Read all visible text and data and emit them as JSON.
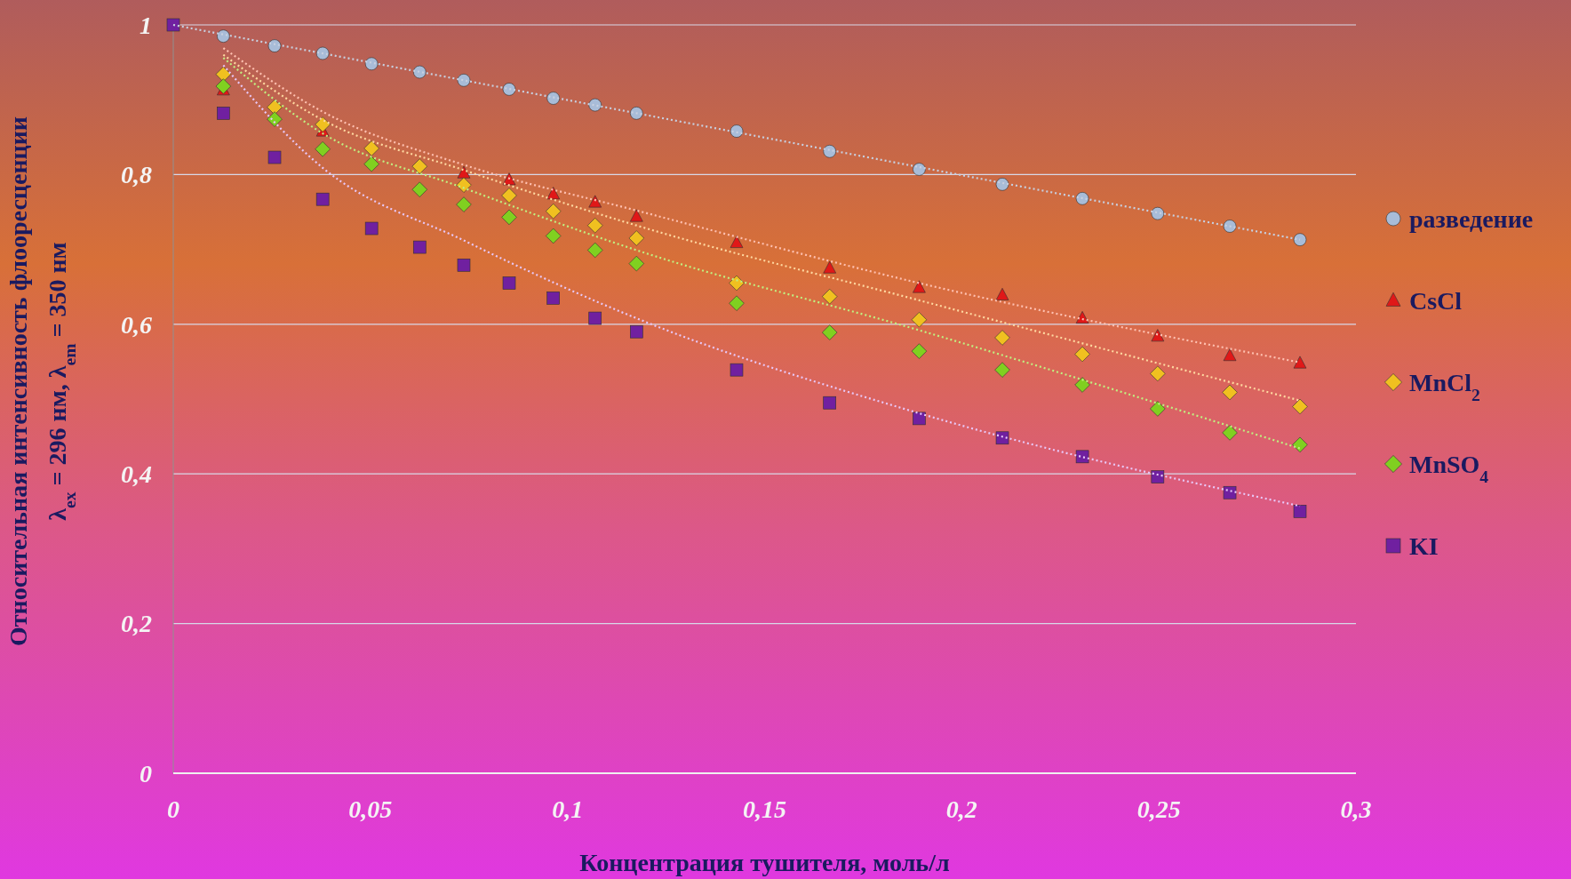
{
  "chart_data": {
    "type": "scatter",
    "xlabel": "Концентрация тушителя, моль/л",
    "ylabel": "Относительная интенсивность флооресценции\nλ$_{ex}$ = 296 нм, λ$_{em}$ = 350 нм",
    "xlim": [
      0,
      0.3
    ],
    "ylim": [
      0,
      1
    ],
    "xticks": [
      0,
      {
        "value": 0.05,
        "label": "0,05"
      },
      {
        "value": 0.1,
        "label": "0,1"
      },
      {
        "value": 0.15,
        "label": "0,15"
      },
      {
        "value": 0.2,
        "label": "0,2"
      },
      {
        "value": 0.25,
        "label": "0,25"
      },
      {
        "value": 0.3,
        "label": "0,3"
      }
    ],
    "yticks": [
      0,
      {
        "value": 0.2,
        "label": "0,2"
      },
      {
        "value": 0.4,
        "label": "0,4"
      },
      {
        "value": 0.6,
        "label": "0,6"
      },
      {
        "value": 0.8,
        "label": "0,8"
      },
      1
    ],
    "grid": "y",
    "legend": "right",
    "x": [
      0,
      0.0127,
      0.0257,
      0.0379,
      0.0503,
      0.0625,
      0.0737,
      0.0852,
      0.0964,
      0.107,
      0.1175,
      0.1429,
      0.1665,
      0.1892,
      0.2103,
      0.2306,
      0.2497,
      0.268,
      0.2858
    ],
    "series": [
      {
        "type": "line",
        "color": "#c8d0e0",
        "line_style": "dotted",
        "marker": "none",
        "x": [
          0,
          0.2858
        ],
        "values": [
          1,
          0.713
        ]
      },
      {
        "type": "line",
        "color": "#ffc0b0",
        "line_style": "dotted",
        "marker": "none",
        "x": [
          0.0127,
          0.0379,
          0.0737,
          0.1175,
          0.1892,
          0.2858
        ],
        "values": [
          0.969,
          0.884,
          0.813,
          0.752,
          0.655,
          0.549
        ]
      },
      {
        "type": "line",
        "color": "#ffd8a0",
        "line_style": "dotted",
        "marker": "none",
        "x": [
          0.0127,
          0.0379,
          0.0737,
          0.1175,
          0.1892,
          0.2858
        ],
        "values": [
          0.96,
          0.873,
          0.806,
          0.732,
          0.632,
          0.498
        ]
      },
      {
        "type": "line",
        "color": "#c0f080",
        "line_style": "dotted",
        "marker": "none",
        "x": [
          0.0127,
          0.0379,
          0.0737,
          0.1175,
          0.1892,
          0.2858
        ],
        "values": [
          0.956,
          0.855,
          0.782,
          0.699,
          0.592,
          0.434
        ]
      },
      {
        "type": "line",
        "color": "#e8c8f8",
        "line_style": "dotted",
        "marker": "none",
        "x": [
          0.0127,
          0.0379,
          0.0737,
          0.1175,
          0.1892,
          0.2858
        ],
        "values": [
          0.946,
          0.809,
          0.712,
          0.608,
          0.481,
          0.357
        ]
      },
      {
        "name": "разведение",
        "color": "#a8bcd8",
        "marker": "circle",
        "values": [
          null,
          0.985,
          0.972,
          0.962,
          0.948,
          0.937,
          0.926,
          0.914,
          0.902,
          0.893,
          0.882,
          0.858,
          0.831,
          0.807,
          0.787,
          0.768,
          0.748,
          0.731,
          0.713
        ]
      },
      {
        "name": "CsCl",
        "color": "#e01818",
        "marker": "triangle",
        "values": [
          null,
          0.913,
          null,
          0.858,
          null,
          null,
          0.802,
          0.793,
          0.774,
          0.763,
          0.744,
          0.709,
          0.675,
          0.649,
          0.639,
          0.608,
          0.584,
          0.558,
          0.548
        ]
      },
      {
        "name": "MnCl$_{2}$",
        "color": "#f0c020",
        "marker": "diamond",
        "values": [
          null,
          0.934,
          0.89,
          0.867,
          0.835,
          0.811,
          0.786,
          0.772,
          0.751,
          0.732,
          0.715,
          0.655,
          0.637,
          0.606,
          0.582,
          0.56,
          0.534,
          0.509,
          0.49
        ]
      },
      {
        "name": "MnSO$_{4}$",
        "color": "#80d020",
        "marker": "diamond",
        "values": [
          null,
          0.918,
          0.874,
          0.834,
          0.814,
          0.78,
          0.76,
          0.743,
          0.718,
          0.699,
          0.681,
          0.628,
          0.589,
          0.564,
          0.539,
          0.519,
          0.487,
          0.455,
          0.439
        ]
      },
      {
        "name": "KI",
        "color": "#7020a0",
        "marker": "square",
        "values": [
          1,
          0.882,
          0.823,
          0.767,
          0.728,
          0.703,
          0.679,
          0.655,
          0.635,
          0.608,
          0.59,
          0.539,
          0.495,
          0.474,
          0.448,
          0.423,
          0.396,
          0.375,
          0.35
        ]
      }
    ]
  }
}
